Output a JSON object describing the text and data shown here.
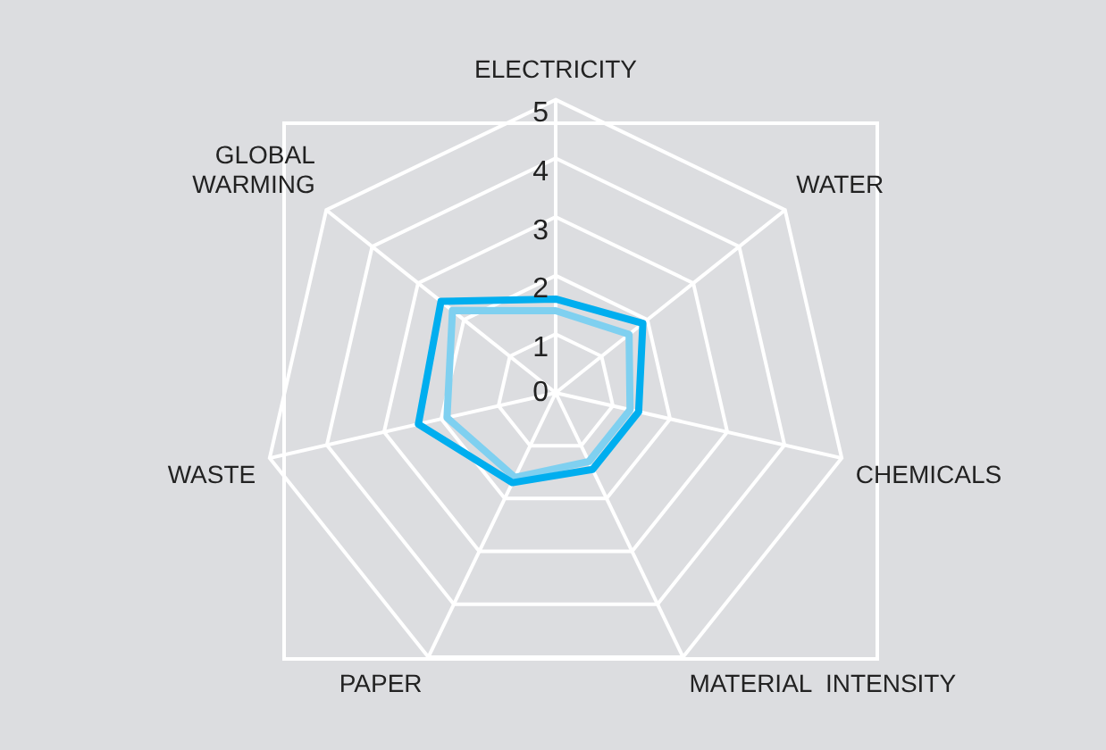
{
  "chart_data": {
    "type": "radar",
    "categories": [
      "ELECTRICITY",
      "WATER",
      "CHEMICALS",
      "MATERIAL  INTENSITY",
      "PAPER",
      "WASTE",
      "GLOBAL\nWARMING"
    ],
    "series": [
      {
        "color": "#00aeef",
        "values": [
          1.6,
          1.9,
          1.45,
          1.45,
          1.7,
          2.4,
          2.5
        ]
      },
      {
        "color": "#7fd0f0",
        "values": [
          1.4,
          1.6,
          1.3,
          1.3,
          1.6,
          1.9,
          2.25
        ]
      }
    ],
    "ylim": [
      0,
      5
    ],
    "yticks": [
      0,
      1,
      2,
      3,
      4,
      5
    ],
    "grid": true,
    "legend": false,
    "marker": "none"
  }
}
